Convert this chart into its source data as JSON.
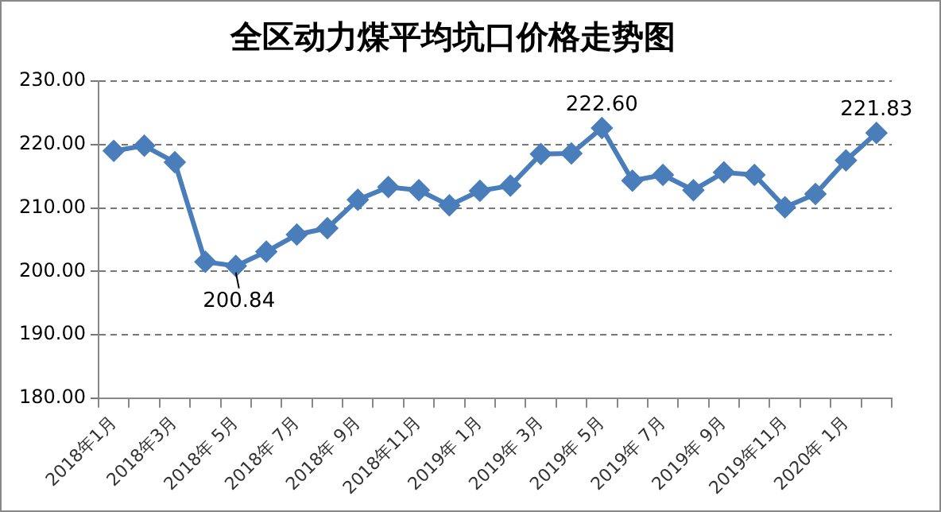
{
  "chart_data": {
    "type": "line",
    "title": "全区动力煤平均坑口价格走势图",
    "categories": [
      "2018年1月",
      null,
      "2018年3月",
      null,
      "2018年 5月",
      null,
      "2018年 7月",
      null,
      "2018年 9月",
      null,
      "2018年11月",
      null,
      "2019年 1月",
      null,
      "2019年 3月",
      null,
      "2019年 5月",
      null,
      "2019年 7月",
      null,
      "2019年 9月",
      null,
      "2019年11月",
      null,
      "2020年 1月",
      null
    ],
    "series": [
      {
        "color": "#4a7ebb",
        "values": [
          219.0,
          219.8,
          217.2,
          201.5,
          200.84,
          203.1,
          205.8,
          206.8,
          211.3,
          213.3,
          212.8,
          210.4,
          212.7,
          213.5,
          218.5,
          218.6,
          222.6,
          214.3,
          215.2,
          212.8,
          215.6,
          215.2,
          210.1,
          212.2,
          217.5,
          221.83
        ],
        "value_labels": [
          null,
          null,
          null,
          null,
          "200.84",
          null,
          null,
          null,
          null,
          null,
          null,
          null,
          null,
          null,
          null,
          null,
          "222.60",
          null,
          null,
          null,
          null,
          null,
          null,
          null,
          null,
          "221.83"
        ]
      }
    ],
    "ylim": [
      180,
      230
    ],
    "yticks": [
      {
        "value": 180,
        "label": "180.00"
      },
      {
        "value": 190,
        "label": "190.00"
      },
      {
        "value": 200,
        "label": "200.00"
      },
      {
        "value": 210,
        "label": "210.00"
      },
      {
        "value": 220,
        "label": "220.00"
      },
      {
        "value": 230,
        "label": "230.00"
      }
    ],
    "grid": "y",
    "legend": false,
    "marker": "diamond",
    "line_style": "solid"
  }
}
